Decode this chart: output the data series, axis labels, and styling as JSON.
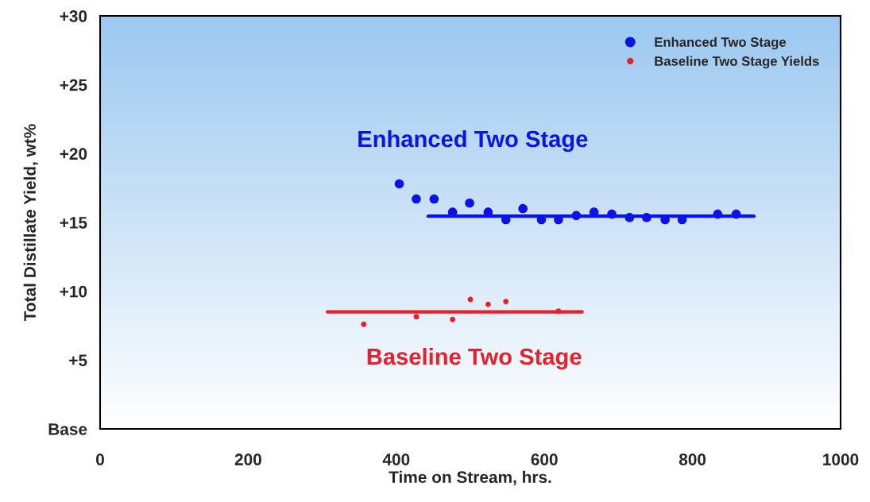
{
  "chart_data": {
    "type": "scatter",
    "xlabel": "Time on Stream, hrs.",
    "ylabel": "Total Distillate Yield, wt%",
    "xlim": [
      0,
      1000
    ],
    "xticks": [
      0,
      200,
      400,
      600,
      800,
      1000
    ],
    "ylim": [
      0,
      30
    ],
    "yticks": [
      {
        "value": 0,
        "label": "Base"
      },
      {
        "value": 5,
        "label": "+5"
      },
      {
        "value": 10,
        "label": "+10"
      },
      {
        "value": 15,
        "label": "+15"
      },
      {
        "value": 20,
        "label": "+20"
      },
      {
        "value": 25,
        "label": "+25"
      },
      {
        "value": 30,
        "label": "+30"
      }
    ],
    "legend": "top right",
    "grid": false,
    "series": [
      {
        "name": "Enhanced Two Stage",
        "color": "#0a14e6",
        "marker": "circle",
        "x": [
          404,
          427,
          451,
          476,
          499,
          524,
          548,
          571,
          596,
          619,
          643,
          667,
          691,
          715,
          738,
          763,
          786,
          834,
          859
        ],
        "values": [
          17.8,
          16.7,
          16.7,
          15.75,
          16.4,
          15.75,
          15.2,
          16.0,
          15.2,
          15.2,
          15.5,
          15.75,
          15.6,
          15.35,
          15.35,
          15.2,
          15.2,
          15.6,
          15.6
        ]
      },
      {
        "name": "Baseline Two Stage Yields",
        "color": "#e8202c",
        "marker": "circle",
        "x": [
          356,
          427,
          476,
          500,
          524,
          548,
          619
        ],
        "values": [
          7.6,
          8.15,
          7.95,
          9.4,
          9.05,
          9.25,
          8.55
        ]
      },
      {
        "color": "#0a14e6",
        "type": "line",
        "x": [
          443,
          883
        ],
        "values": [
          15.45,
          15.45
        ]
      },
      {
        "color": "#e8202c",
        "type": "line",
        "x": [
          307,
          651
        ],
        "values": [
          8.5,
          8.5
        ]
      }
    ],
    "annotations": [
      "Enhanced Two Stage",
      "Baseline Two Stage"
    ]
  }
}
